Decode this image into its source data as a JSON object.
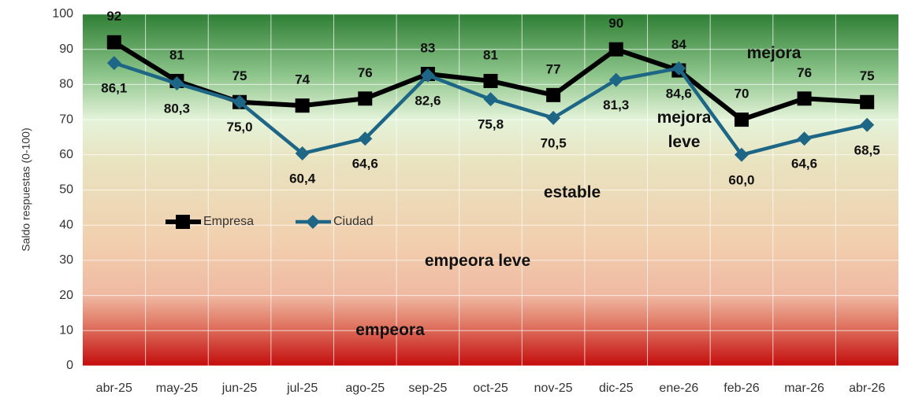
{
  "chart_data": {
    "type": "line",
    "y_axis_label": "Saldo respuestas (0-100)",
    "categories": [
      "abr-25",
      "may-25",
      "jun-25",
      "jul-25",
      "ago-25",
      "sep-25",
      "oct-25",
      "nov-25",
      "dic-25",
      "ene-26",
      "feb-26",
      "mar-26",
      "abr-26"
    ],
    "series": [
      {
        "name": "Empresa",
        "color": "#000000",
        "marker": "square",
        "values": [
          92,
          81,
          75,
          74,
          76,
          83,
          81,
          77,
          90,
          84,
          70,
          76,
          75
        ]
      },
      {
        "name": "Ciudad",
        "color": "#1e6686",
        "marker": "diamond",
        "values": [
          86.1,
          80.3,
          75.0,
          60.4,
          64.6,
          82.6,
          75.8,
          70.5,
          81.3,
          84.6,
          60.0,
          64.6,
          68.5
        ],
        "value_labels": [
          "86,1",
          "80,3",
          "75,0",
          "60,4",
          "64,6",
          "82,6",
          "75,8",
          "70,5",
          "81,3",
          "84,6",
          "60,0",
          "64,6",
          "68,5"
        ]
      }
    ],
    "annotations": [
      "mejora",
      "mejora leve",
      "estable",
      "empeora leve",
      "empeora"
    ],
    "ylim": [
      0,
      100
    ],
    "yticks": [
      0,
      10,
      20,
      30,
      40,
      50,
      60,
      70,
      80,
      90,
      100
    ],
    "grid": true
  }
}
